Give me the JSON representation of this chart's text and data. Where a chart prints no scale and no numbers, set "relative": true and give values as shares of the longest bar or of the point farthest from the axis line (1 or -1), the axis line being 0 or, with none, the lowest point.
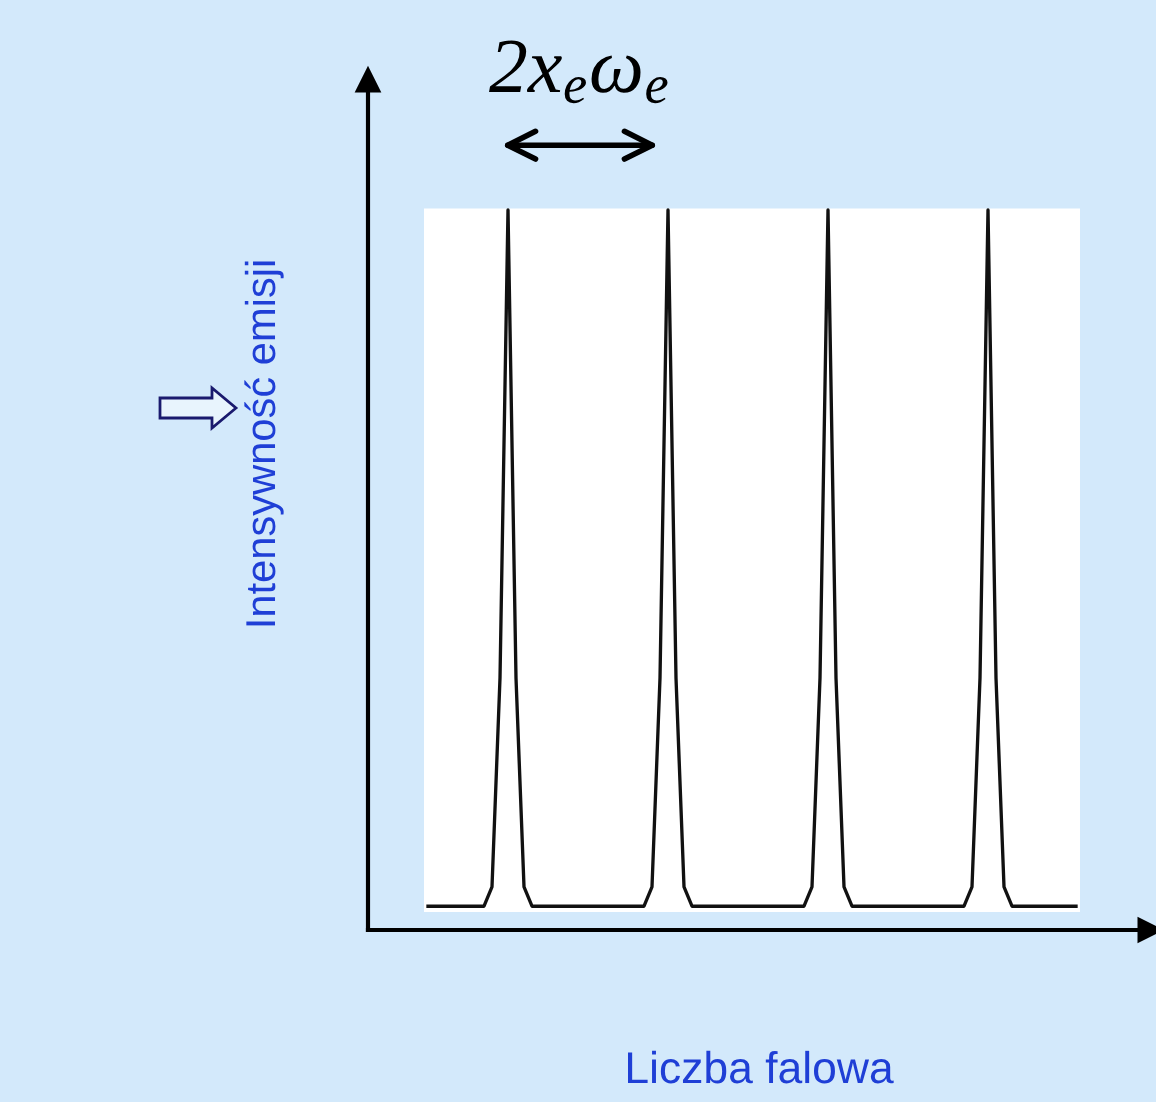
{
  "chart_data": {
    "type": "line",
    "relative": true,
    "xlabel": "Liczba falowa",
    "ylabel": "Intensywność emisji",
    "annotations": [
      "2x$_{e}$ω$_{e}$"
    ],
    "categories": [
      null,
      null,
      null,
      null,
      null,
      null,
      null,
      null,
      null,
      null,
      null,
      null,
      null,
      null,
      null,
      null,
      null,
      null,
      null,
      null,
      null,
      null,
      null,
      null,
      null,
      null,
      null,
      null,
      null,
      null,
      null,
      null,
      null,
      null,
      null,
      null,
      null,
      null,
      null,
      null,
      null,
      null,
      null,
      null,
      null,
      null,
      null,
      null,
      null,
      null,
      null,
      null,
      null,
      null,
      null,
      null,
      null,
      null,
      null,
      null,
      null,
      null,
      null,
      null,
      null,
      null,
      null,
      null,
      null,
      null,
      null,
      null,
      null,
      null,
      null,
      null,
      null,
      null,
      null,
      null,
      null,
      null
    ],
    "series": [
      {
        "color": "#111111",
        "values": [
          0.033,
          0.033,
          0.033,
          0.033,
          0.033,
          0.033,
          0.033,
          0.033,
          0.06,
          0.35,
          1,
          0.35,
          0.06,
          0.033,
          0.033,
          0.033,
          0.033,
          0.033,
          0.033,
          0.033,
          0.033,
          0.033,
          0.033,
          0.033,
          0.033,
          0.033,
          0.033,
          0.033,
          0.06,
          0.35,
          1,
          0.35,
          0.06,
          0.033,
          0.033,
          0.033,
          0.033,
          0.033,
          0.033,
          0.033,
          0.033,
          0.033,
          0.033,
          0.033,
          0.033,
          0.033,
          0.033,
          0.033,
          0.06,
          0.35,
          1,
          0.35,
          0.06,
          0.033,
          0.033,
          0.033,
          0.033,
          0.033,
          0.033,
          0.033,
          0.033,
          0.033,
          0.033,
          0.033,
          0.033,
          0.033,
          0.033,
          0.033,
          0.06,
          0.35,
          1,
          0.35,
          0.06,
          0.033,
          0.033,
          0.033,
          0.033,
          0.033,
          0.033,
          0.033,
          0.033,
          0.033
        ]
      }
    ],
    "grid": false,
    "legend": false,
    "marker": "none",
    "line_style": "solid"
  }
}
